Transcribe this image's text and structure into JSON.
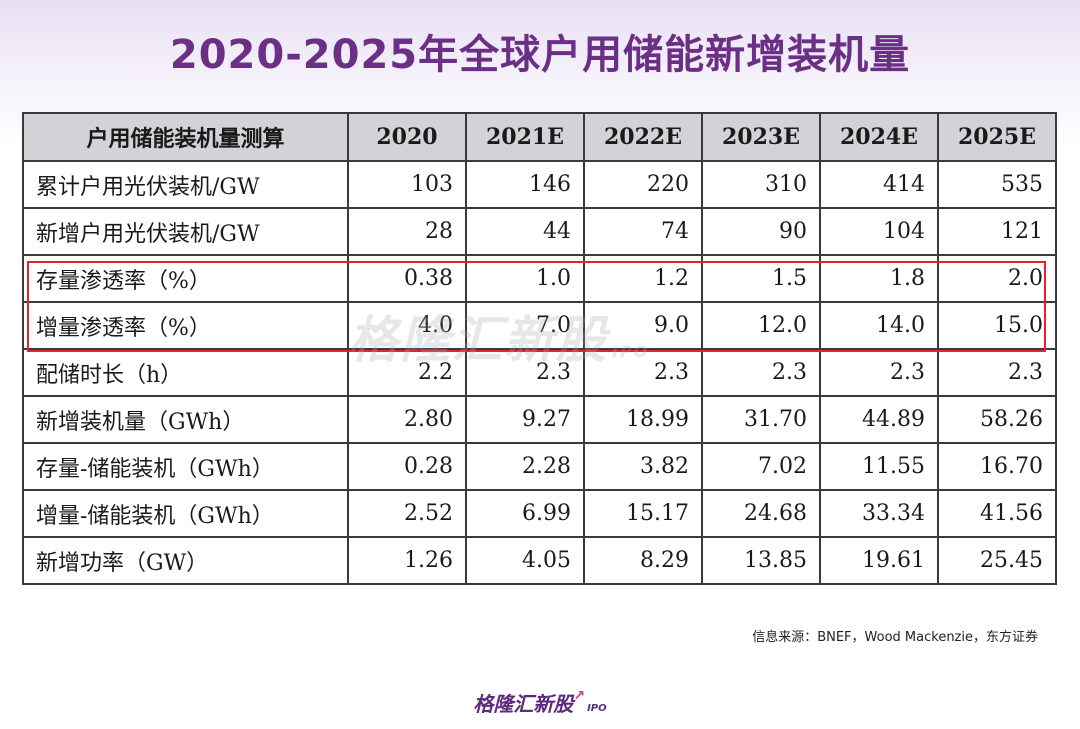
{
  "title": "2020-2025年全球户用储能新增装机量",
  "table": {
    "header": [
      "户用储能装机量测算",
      "2020",
      "2021E",
      "2022E",
      "2023E",
      "2024E",
      "2025E"
    ],
    "rows": [
      {
        "label": "累计户用光伏装机/GW",
        "values": [
          "103",
          "146",
          "220",
          "310",
          "414",
          "535"
        ]
      },
      {
        "label": "新增户用光伏装机/GW",
        "values": [
          "28",
          "44",
          "74",
          "90",
          "104",
          "121"
        ]
      },
      {
        "label": "存量渗透率（%）",
        "values": [
          "0.38",
          "1.0",
          "1.2",
          "1.5",
          "1.8",
          "2.0"
        ]
      },
      {
        "label": "增量渗透率（%）",
        "values": [
          "4.0",
          "7.0",
          "9.0",
          "12.0",
          "14.0",
          "15.0"
        ]
      },
      {
        "label": "配储时长（h）",
        "values": [
          "2.2",
          "2.3",
          "2.3",
          "2.3",
          "2.3",
          "2.3"
        ]
      },
      {
        "label": "新增装机量（GWh）",
        "values": [
          "2.80",
          "9.27",
          "18.99",
          "31.70",
          "44.89",
          "58.26"
        ]
      },
      {
        "label": "存量-储能装机（GWh）",
        "values": [
          "0.28",
          "2.28",
          "3.82",
          "7.02",
          "11.55",
          "16.70"
        ]
      },
      {
        "label": "增量-储能装机（GWh）",
        "values": [
          "2.52",
          "6.99",
          "15.17",
          "24.68",
          "33.34",
          "41.56"
        ]
      },
      {
        "label": "新增功率（GW）",
        "values": [
          "1.26",
          "4.05",
          "8.29",
          "13.85",
          "19.61",
          "25.45"
        ]
      }
    ]
  },
  "watermark": {
    "text": "格隆汇新股",
    "suffix": "IPO"
  },
  "source": "信息来源：BNEF，Wood Mackenzie，东方证券",
  "footer_logo": {
    "text": "格隆汇新股",
    "suffix": "IPO"
  },
  "colors": {
    "title": "#6b2f86",
    "highlight_border": "#e0262b",
    "header_bg": "#d2d2d7"
  }
}
